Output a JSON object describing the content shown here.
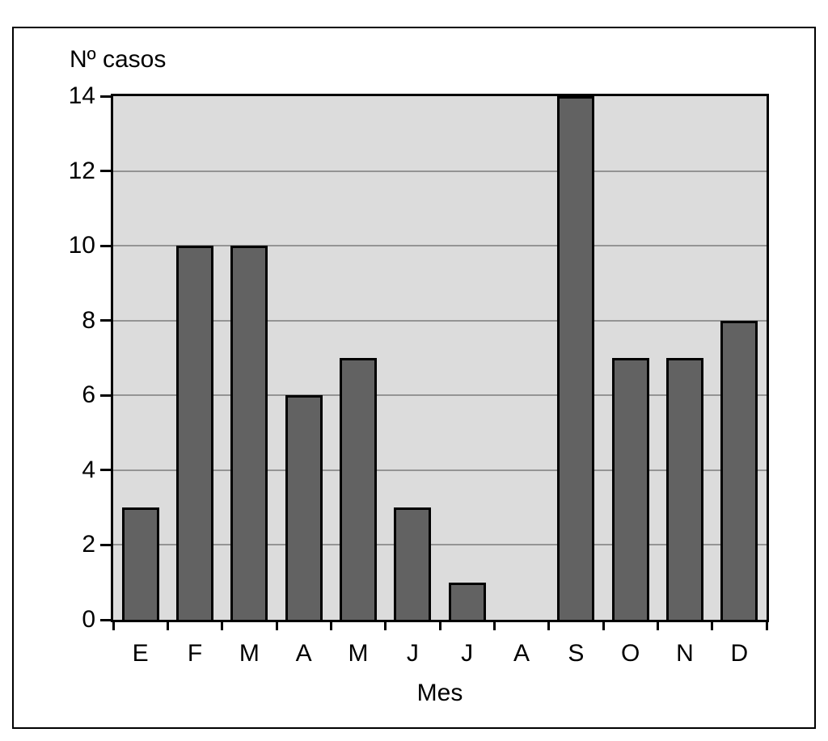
{
  "chart_data": {
    "type": "bar",
    "title": "",
    "ylabel": "Nº casos",
    "xlabel": "Mes",
    "categories": [
      "E",
      "F",
      "M",
      "A",
      "M",
      "J",
      "J",
      "A",
      "S",
      "O",
      "N",
      "D"
    ],
    "values": [
      3,
      10,
      10,
      6,
      7,
      3,
      1,
      0,
      14,
      7,
      7,
      8
    ],
    "ylim": [
      0,
      14
    ],
    "yticks": [
      0,
      2,
      4,
      6,
      8,
      10,
      12,
      14
    ],
    "grid": "horizontal gridlines at every y tick between axis and top",
    "legend": "none",
    "colors": {
      "bar_fill": "#626262",
      "bar_border": "#000000",
      "plot_background": "#dcdcdc",
      "gridline": "#949494",
      "axis": "#000000",
      "outer_frame": "#000000",
      "page_background": "#ffffff"
    }
  }
}
